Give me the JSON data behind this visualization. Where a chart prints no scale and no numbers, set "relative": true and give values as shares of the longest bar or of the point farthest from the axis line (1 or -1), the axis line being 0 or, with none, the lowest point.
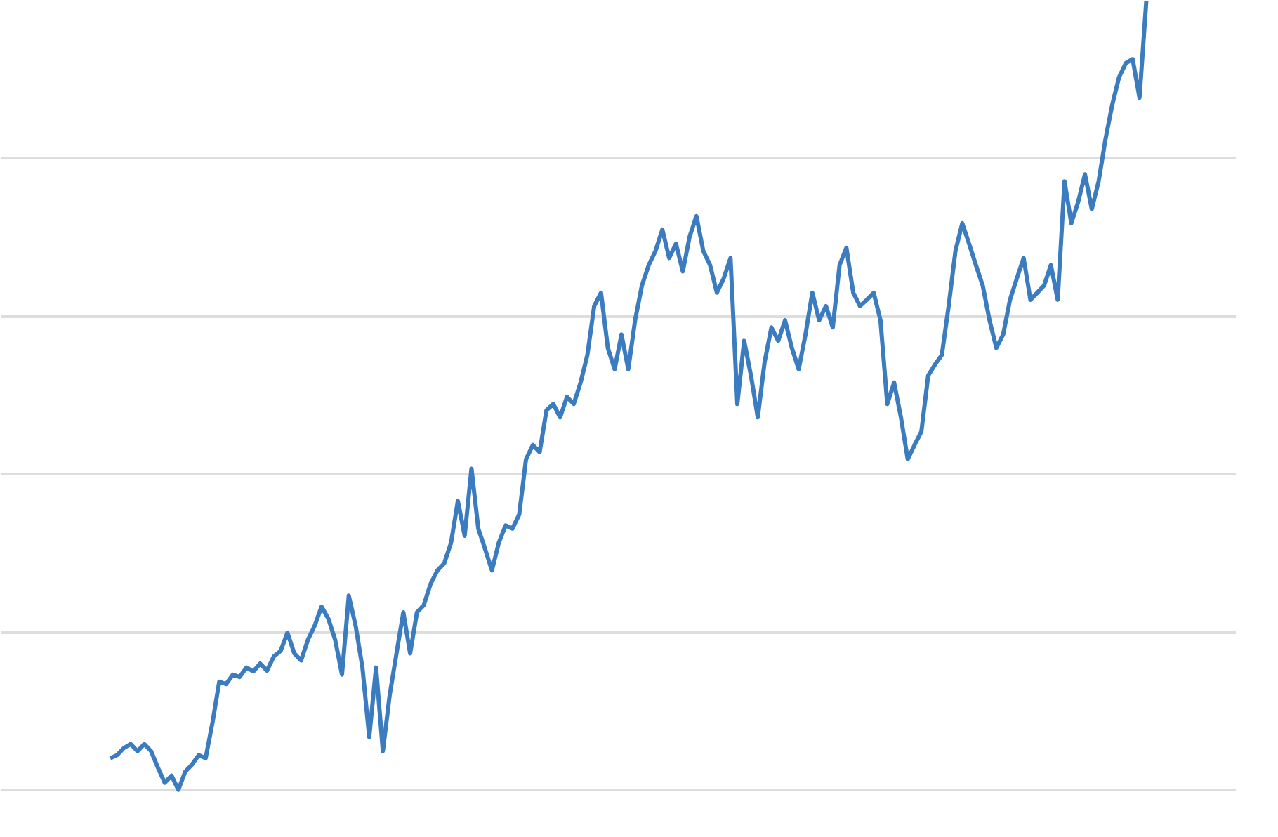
{
  "chart_data": {
    "type": "line",
    "relative": true,
    "grid": "y",
    "color": "#3b7bbf",
    "categories": [
      null,
      null,
      null,
      null,
      null,
      null,
      null,
      null,
      null,
      null,
      null,
      null,
      null,
      null,
      null,
      null,
      null,
      null,
      null,
      null,
      null,
      null,
      null,
      null,
      null,
      null,
      null,
      null,
      null,
      null,
      null,
      null,
      null,
      null,
      null,
      null,
      null,
      null,
      null,
      null,
      null,
      null,
      null,
      null,
      null,
      null,
      null,
      null,
      null,
      null,
      null,
      null,
      null,
      null,
      null,
      null,
      null,
      null,
      null,
      null,
      null,
      null,
      null,
      null,
      null,
      null,
      null,
      null,
      null,
      null,
      null,
      null,
      null,
      null,
      null,
      null,
      null,
      null,
      null,
      null,
      null,
      null,
      null,
      null,
      null,
      null,
      null,
      null,
      null,
      null,
      null,
      null,
      null,
      null,
      null,
      null,
      null,
      null,
      null,
      null,
      null,
      null,
      null,
      null,
      null,
      null,
      null,
      null,
      null,
      null,
      null,
      null,
      null,
      null,
      null,
      null,
      null,
      null,
      null,
      null,
      null,
      null,
      null,
      null,
      null,
      null,
      null,
      null,
      null,
      null,
      null,
      null,
      null,
      null,
      null,
      null,
      null,
      null,
      null,
      null,
      null,
      null,
      null,
      null,
      null,
      null,
      null,
      null,
      null,
      null,
      null,
      null,
      null
    ],
    "values": [
      0.04,
      0.044,
      0.053,
      0.058,
      0.049,
      0.058,
      0.049,
      0.028,
      0.009,
      0.018,
      0,
      0.023,
      0.032,
      0.044,
      0.04,
      0.085,
      0.137,
      0.134,
      0.146,
      0.143,
      0.155,
      0.15,
      0.16,
      0.151,
      0.169,
      0.176,
      0.199,
      0.173,
      0.164,
      0.19,
      0.208,
      0.232,
      0.217,
      0.19,
      0.146,
      0.246,
      0.208,
      0.155,
      0.067,
      0.155,
      0.049,
      0.12,
      0.173,
      0.225,
      0.173,
      0.225,
      0.234,
      0.261,
      0.278,
      0.287,
      0.313,
      0.366,
      0.322,
      0.407,
      0.331,
      0.305,
      0.278,
      0.313,
      0.335,
      0.331,
      0.349,
      0.419,
      0.437,
      0.428,
      0.481,
      0.489,
      0.472,
      0.498,
      0.489,
      0.516,
      0.551,
      0.613,
      0.63,
      0.56,
      0.533,
      0.577,
      0.533,
      0.595,
      0.639,
      0.665,
      0.683,
      0.71,
      0.674,
      0.692,
      0.657,
      0.701,
      0.727,
      0.683,
      0.665,
      0.63,
      0.648,
      0.674,
      0.489,
      0.569,
      0.525,
      0.472,
      0.542,
      0.586,
      0.569,
      0.595,
      0.56,
      0.533,
      0.577,
      0.63,
      0.595,
      0.613,
      0.586,
      0.665,
      0.687,
      0.63,
      0.613,
      0.621,
      0.63,
      0.595,
      0.489,
      0.516,
      0.472,
      0.419,
      0.437,
      0.454,
      0.525,
      0.539,
      0.551,
      0.613,
      0.683,
      0.718,
      0.692,
      0.665,
      0.639,
      0.595,
      0.56,
      0.577,
      0.621,
      0.648,
      0.674,
      0.621,
      0.63,
      0.639,
      0.665,
      0.621,
      0.771,
      0.718,
      0.745,
      0.78,
      0.736,
      0.771,
      0.824,
      0.868,
      0.903,
      0.921,
      0.926,
      0.877,
      1
    ]
  }
}
